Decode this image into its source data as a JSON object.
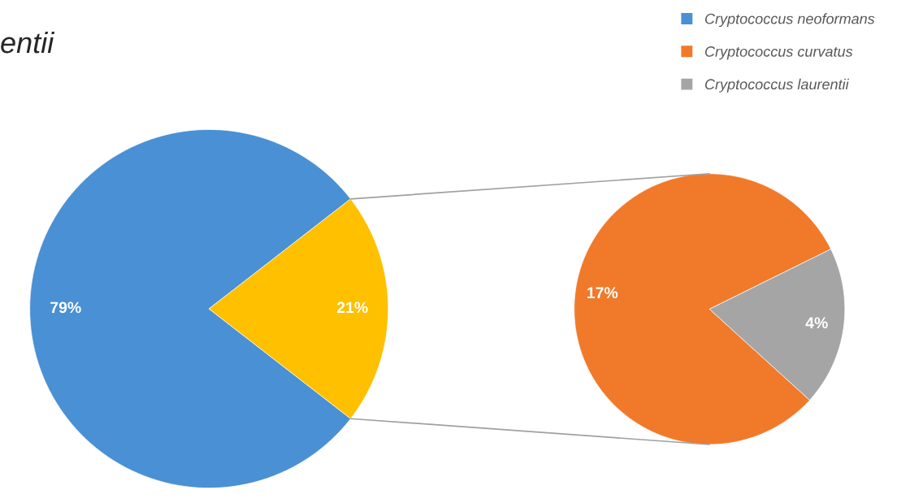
{
  "chart_data": [
    {
      "type": "pie",
      "title": "entii",
      "categories": [
        "Cryptococcus neoformans",
        null
      ],
      "values": [
        79,
        21
      ],
      "colors": [
        "#4a90d4",
        "#ffc000"
      ],
      "value_labels": [
        "79%",
        "21%"
      ],
      "legend": "top right"
    },
    {
      "type": "pie",
      "categories": [
        "Cryptococcus curvatus",
        "Cryptococcus laurentii"
      ],
      "values": [
        17,
        4
      ],
      "colors": [
        "#f07a2a",
        "#a5a5a5"
      ],
      "value_labels": [
        "17%",
        "4%"
      ],
      "legend": "top right"
    }
  ]
}
